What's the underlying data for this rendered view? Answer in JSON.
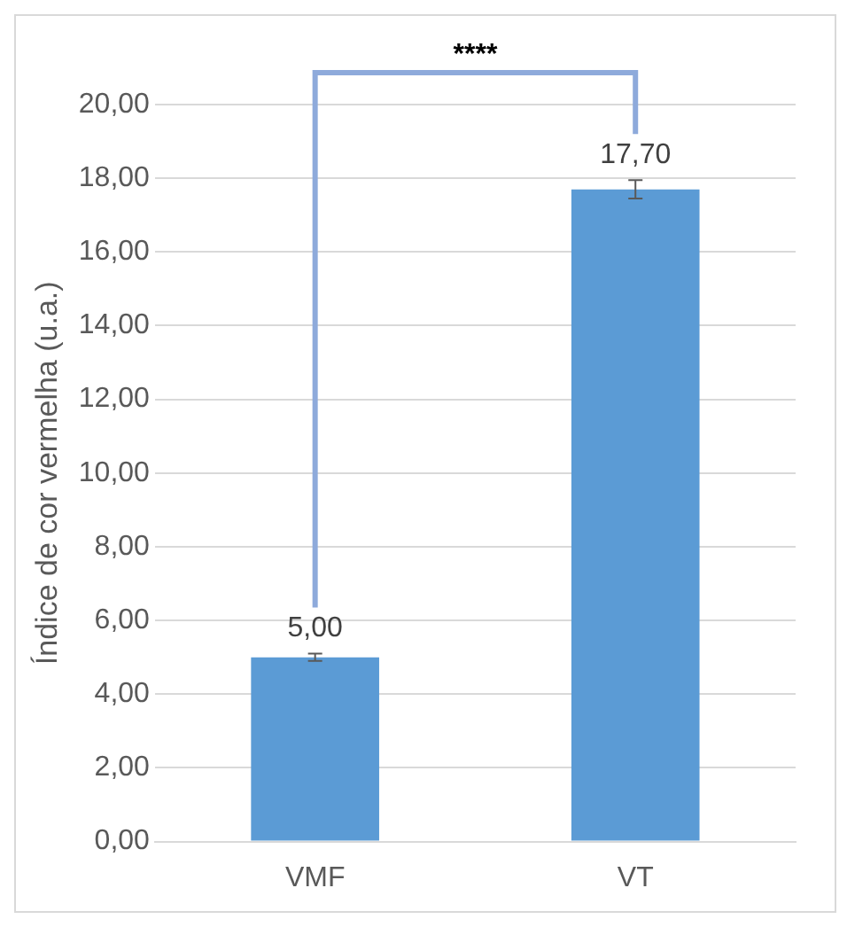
{
  "chart_data": {
    "type": "bar",
    "ylabel": "Índice de cor vermelha (u.a.)",
    "categories": [
      "VMF",
      "VT"
    ],
    "values": [
      5.0,
      17.7
    ],
    "color": "#5b9bd5",
    "errors": [
      0.1,
      0.25
    ],
    "value_labels": [
      "5,00",
      "17,70"
    ],
    "annotations": [
      "****"
    ],
    "ylim": [
      0,
      20
    ],
    "yticks": [
      {
        "value": 0,
        "label": "0,00"
      },
      {
        "value": 2,
        "label": "2,00"
      },
      {
        "value": 4,
        "label": "4,00"
      },
      {
        "value": 6,
        "label": "6,00"
      },
      {
        "value": 8,
        "label": "8,00"
      },
      {
        "value": 10,
        "label": "10,00"
      },
      {
        "value": 12,
        "label": "12,00"
      },
      {
        "value": 14,
        "label": "14,00"
      },
      {
        "value": 16,
        "label": "16,00"
      },
      {
        "value": 18,
        "label": "18,00"
      },
      {
        "value": 20,
        "label": "20,00"
      }
    ],
    "grid": "y",
    "legend": false
  }
}
